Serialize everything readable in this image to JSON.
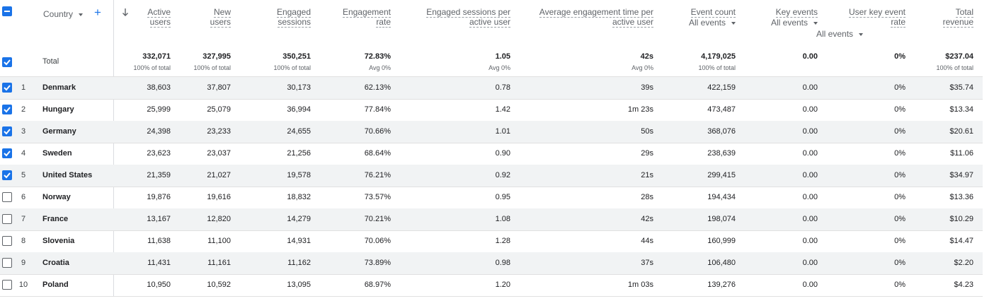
{
  "header": {
    "dimension_label": "Country",
    "add_icon": "plus-icon",
    "sort_icon": "arrow-down-icon",
    "columns": [
      {
        "line1": "Active",
        "line2": "users"
      },
      {
        "line1": "New",
        "line2": "users"
      },
      {
        "line1": "Engaged",
        "line2": "sessions"
      },
      {
        "line1": "Engagement",
        "line2": "rate"
      },
      {
        "line1": "Engaged sessions per",
        "line2": "active user"
      },
      {
        "line1": "Average engagement time per",
        "line2": "active user"
      },
      {
        "line1": "Event count",
        "filter": "All events"
      },
      {
        "line1": "Key events",
        "filter": "All events"
      },
      {
        "line1": "User key event",
        "line2": "rate",
        "filter": "All events"
      },
      {
        "line1": "Total",
        "line2": "revenue"
      }
    ]
  },
  "total": {
    "label": "Total",
    "values": [
      "332,071",
      "327,995",
      "350,251",
      "72.83%",
      "1.05",
      "42s",
      "4,179,025",
      "0.00",
      "0%",
      "$237.04"
    ],
    "subs": [
      "100% of total",
      "100% of total",
      "100% of total",
      "Avg 0%",
      "Avg 0%",
      "Avg 0%",
      "100% of total",
      "",
      "",
      "100% of total"
    ]
  },
  "rows": [
    {
      "index": "1",
      "country": "Denmark",
      "checked": true,
      "values": [
        "38,603",
        "37,807",
        "30,173",
        "62.13%",
        "0.78",
        "39s",
        "422,159",
        "0.00",
        "0%",
        "$35.74"
      ]
    },
    {
      "index": "2",
      "country": "Hungary",
      "checked": true,
      "values": [
        "25,999",
        "25,079",
        "36,994",
        "77.84%",
        "1.42",
        "1m 23s",
        "473,487",
        "0.00",
        "0%",
        "$13.34"
      ]
    },
    {
      "index": "3",
      "country": "Germany",
      "checked": true,
      "values": [
        "24,398",
        "23,233",
        "24,655",
        "70.66%",
        "1.01",
        "50s",
        "368,076",
        "0.00",
        "0%",
        "$20.61"
      ]
    },
    {
      "index": "4",
      "country": "Sweden",
      "checked": true,
      "values": [
        "23,623",
        "23,037",
        "21,256",
        "68.64%",
        "0.90",
        "29s",
        "238,639",
        "0.00",
        "0%",
        "$11.06"
      ]
    },
    {
      "index": "5",
      "country": "United States",
      "checked": true,
      "values": [
        "21,359",
        "21,027",
        "19,578",
        "76.21%",
        "0.92",
        "21s",
        "299,415",
        "0.00",
        "0%",
        "$34.97"
      ]
    },
    {
      "index": "6",
      "country": "Norway",
      "checked": false,
      "values": [
        "19,876",
        "19,616",
        "18,832",
        "73.57%",
        "0.95",
        "28s",
        "194,434",
        "0.00",
        "0%",
        "$13.36"
      ]
    },
    {
      "index": "7",
      "country": "France",
      "checked": false,
      "values": [
        "13,167",
        "12,820",
        "14,279",
        "70.21%",
        "1.08",
        "42s",
        "198,074",
        "0.00",
        "0%",
        "$10.29"
      ]
    },
    {
      "index": "8",
      "country": "Slovenia",
      "checked": false,
      "values": [
        "11,638",
        "11,100",
        "14,931",
        "70.06%",
        "1.28",
        "44s",
        "160,999",
        "0.00",
        "0%",
        "$14.47"
      ]
    },
    {
      "index": "9",
      "country": "Croatia",
      "checked": false,
      "values": [
        "11,431",
        "11,161",
        "11,162",
        "73.89%",
        "0.98",
        "37s",
        "106,480",
        "0.00",
        "0%",
        "$2.20"
      ]
    },
    {
      "index": "10",
      "country": "Poland",
      "checked": false,
      "values": [
        "10,950",
        "10,592",
        "13,095",
        "68.97%",
        "1.20",
        "1m 03s",
        "139,276",
        "0.00",
        "0%",
        "$4.23"
      ]
    }
  ],
  "colors": {
    "accent": "#1a73e8",
    "shade": "#f1f3f4",
    "border": "#e0e0e0"
  }
}
